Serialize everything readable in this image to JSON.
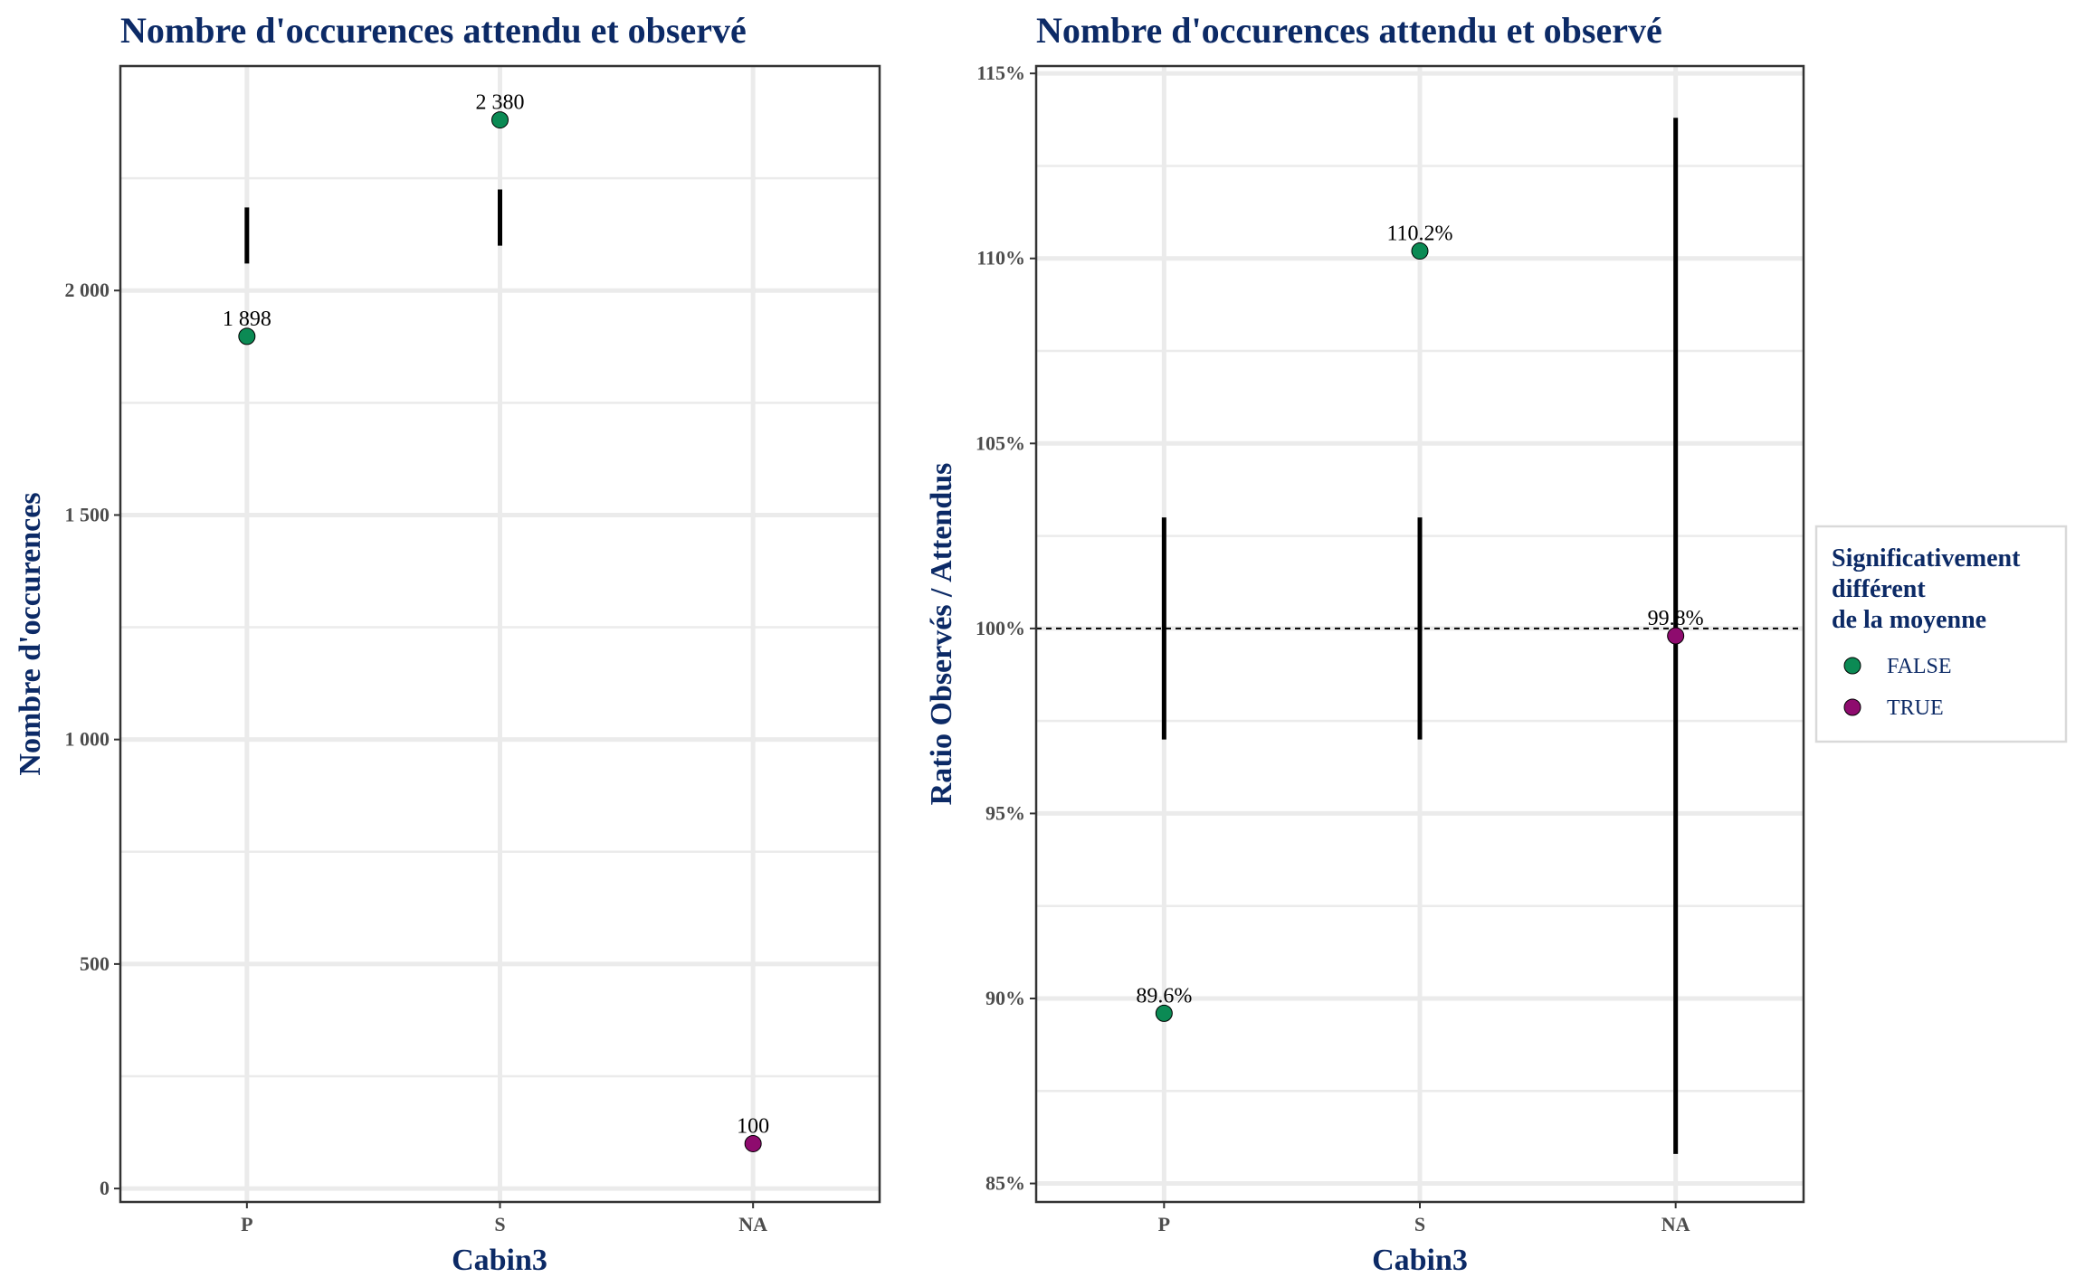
{
  "colors": {
    "title": "#0c2a66",
    "false_point": "#0b8a54",
    "true_point": "#8e0b6e",
    "errorbar": "#000000",
    "grid": "#ebebeb",
    "panel_border": "#333333",
    "tick_text": "#4d4d4d"
  },
  "legend": {
    "title_lines": [
      "Significativement",
      "différent",
      "de la moyenne"
    ],
    "items": [
      {
        "label": "FALSE",
        "color_key": "false_point"
      },
      {
        "label": "TRUE",
        "color_key": "true_point"
      }
    ]
  },
  "chart_data": [
    {
      "type": "scatter",
      "title": "Nombre d'occurences attendu et observé",
      "xlabel": "Cabin3",
      "ylabel": "Nombre d'occurences",
      "categories": [
        "P",
        "S",
        "NA"
      ],
      "ylim": [
        -30,
        2500
      ],
      "y_ticks": [
        0,
        500,
        1000,
        1500,
        2000
      ],
      "y_tick_labels": [
        "0",
        "500",
        "1 000",
        "1 500",
        "2 000"
      ],
      "grid": true,
      "points": [
        {
          "x": "P",
          "y": 1898,
          "label": "1 898",
          "significant": false
        },
        {
          "x": "S",
          "y": 2380,
          "label": "2 380",
          "significant": false
        },
        {
          "x": "NA",
          "y": 100,
          "label": "100",
          "significant": true
        }
      ],
      "error_bars": [
        {
          "x": "P",
          "low": 2060,
          "high": 2185
        },
        {
          "x": "S",
          "low": 2100,
          "high": 2225
        }
      ]
    },
    {
      "type": "scatter",
      "title": "Nombre d'occurences attendu et observé",
      "xlabel": "Cabin3",
      "ylabel": "Ratio Observés / Attendus",
      "categories": [
        "P",
        "S",
        "NA"
      ],
      "ylim": [
        84.5,
        115.2
      ],
      "y_ticks": [
        85,
        90,
        95,
        100,
        105,
        110,
        115
      ],
      "y_tick_labels": [
        "85%",
        "90%",
        "95%",
        "100%",
        "105%",
        "110%",
        "115%"
      ],
      "grid": true,
      "reference_line": 100,
      "points": [
        {
          "x": "P",
          "y": 89.6,
          "label": "89.6%",
          "significant": false
        },
        {
          "x": "S",
          "y": 110.2,
          "label": "110.2%",
          "significant": false
        },
        {
          "x": "NA",
          "y": 99.8,
          "label": "99.8%",
          "significant": true
        }
      ],
      "error_bars": [
        {
          "x": "P",
          "low": 97.0,
          "high": 103.0
        },
        {
          "x": "S",
          "low": 97.0,
          "high": 103.0
        },
        {
          "x": "NA",
          "low": 85.8,
          "high": 113.8
        }
      ]
    }
  ]
}
